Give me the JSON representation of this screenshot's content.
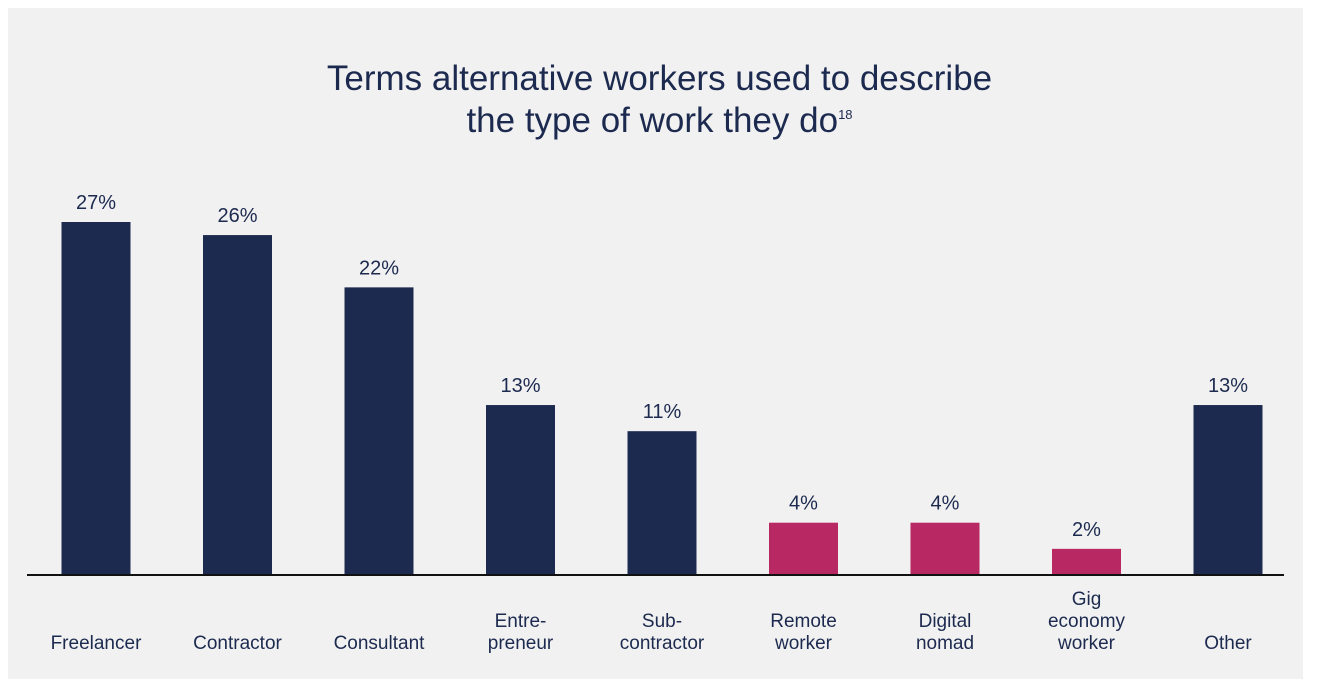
{
  "title": {
    "line1": "Terms alternative workers used to describe",
    "line2": "the type of work they do",
    "footnote": "18"
  },
  "colors": {
    "primary": "#1c2a4f",
    "highlight": "#b82863",
    "background": "#f1f1f1"
  },
  "chart_data": {
    "type": "bar",
    "title": "Terms alternative workers used to describe the type of work they do",
    "categories": [
      "Freelancer",
      "Contractor",
      "Consultant",
      "Entre-\npreneur",
      "Sub-\ncontractor",
      "Remote\nworker",
      "Digital\nnomad",
      "Gig\neconomy\nworker",
      "Other"
    ],
    "values": [
      27,
      26,
      22,
      13,
      11,
      4,
      4,
      2,
      13
    ],
    "value_labels": [
      "27%",
      "26%",
      "22%",
      "13%",
      "11%",
      "4%",
      "4%",
      "2%",
      "13%"
    ],
    "highlighted": [
      false,
      false,
      false,
      false,
      false,
      true,
      true,
      true,
      false
    ],
    "ylim": [
      0,
      27
    ],
    "grid": false,
    "legend": "none"
  }
}
